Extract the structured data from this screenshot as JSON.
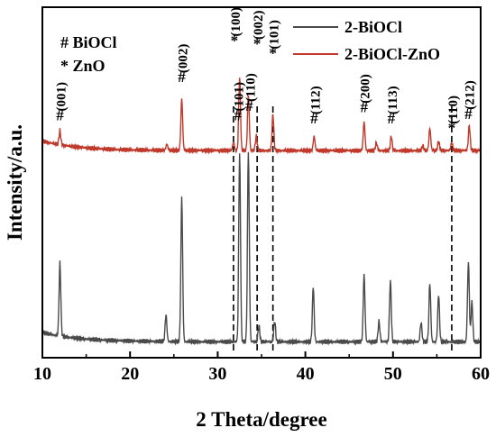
{
  "chart_data": {
    "type": "line",
    "title": "",
    "xlabel": "2 Theta/degree",
    "ylabel": "Intensity/a.u.",
    "xlim": [
      10,
      60
    ],
    "x_ticks": [
      10,
      20,
      30,
      40,
      50,
      60
    ],
    "y_ticks_shown": false,
    "grid": false,
    "legend_position": "top-right",
    "phase_key": [
      {
        "symbol": "#",
        "label": "BiOCl"
      },
      {
        "symbol": "*",
        "label": "ZnO"
      }
    ],
    "series": [
      {
        "name": "2-BiOCl",
        "color": "#4a4a4a",
        "baseline": 1.0,
        "peaks": [
          {
            "x": 12.0,
            "h": 4.6
          },
          {
            "x": 24.1,
            "h": 1.7
          },
          {
            "x": 25.9,
            "h": 9.2
          },
          {
            "x": 32.5,
            "h": 11.8
          },
          {
            "x": 33.5,
            "h": 12.0
          },
          {
            "x": 34.7,
            "h": 1.0
          },
          {
            "x": 36.5,
            "h": 1.3
          },
          {
            "x": 40.9,
            "h": 3.5
          },
          {
            "x": 46.7,
            "h": 4.2
          },
          {
            "x": 48.4,
            "h": 1.3
          },
          {
            "x": 49.7,
            "h": 3.8
          },
          {
            "x": 53.2,
            "h": 1.2
          },
          {
            "x": 54.2,
            "h": 3.7
          },
          {
            "x": 55.2,
            "h": 3.0
          },
          {
            "x": 58.6,
            "h": 5.0
          },
          {
            "x": 59.0,
            "h": 2.5
          }
        ]
      },
      {
        "name": "2-BiOCl-ZnO",
        "color": "#c0392b",
        "baseline": 13.0,
        "peaks": [
          {
            "x": 12.0,
            "h": 0.9
          },
          {
            "x": 24.2,
            "h": 0.4
          },
          {
            "x": 25.9,
            "h": 3.3
          },
          {
            "x": 31.8,
            "h": 0.5
          },
          {
            "x": 32.5,
            "h": 4.6
          },
          {
            "x": 33.5,
            "h": 3.5
          },
          {
            "x": 34.4,
            "h": 0.9
          },
          {
            "x": 36.3,
            "h": 2.3
          },
          {
            "x": 41.0,
            "h": 0.9
          },
          {
            "x": 46.7,
            "h": 1.8
          },
          {
            "x": 48.1,
            "h": 0.5
          },
          {
            "x": 49.8,
            "h": 0.9
          },
          {
            "x": 53.4,
            "h": 0.3
          },
          {
            "x": 54.2,
            "h": 1.4
          },
          {
            "x": 55.2,
            "h": 0.6
          },
          {
            "x": 56.7,
            "h": 0.5
          },
          {
            "x": 58.7,
            "h": 1.6
          }
        ]
      }
    ],
    "reference_lines": [
      31.8,
      34.5,
      36.3,
      56.7
    ],
    "annotations": [
      {
        "marker": "#",
        "x": 12.0,
        "y": 14.9,
        "label": "(001)"
      },
      {
        "marker": "#",
        "x": 25.9,
        "y": 17.3,
        "label": "(002)"
      },
      {
        "marker": "#",
        "x": 32.3,
        "y": 14.9,
        "label": "(101)"
      },
      {
        "marker": "*",
        "x": 31.9,
        "y": 19.6,
        "label": "(100)"
      },
      {
        "marker": "#",
        "x": 33.6,
        "y": 15.5,
        "label": "(110)"
      },
      {
        "marker": "*",
        "x": 34.5,
        "y": 19.4,
        "label": "(002)"
      },
      {
        "marker": "*",
        "x": 36.3,
        "y": 18.8,
        "label": "(101)"
      },
      {
        "marker": "#",
        "x": 41.0,
        "y": 14.7,
        "label": "(112)"
      },
      {
        "marker": "#",
        "x": 46.7,
        "y": 15.4,
        "label": "(200)"
      },
      {
        "marker": "#",
        "x": 49.8,
        "y": 14.7,
        "label": "(113)"
      },
      {
        "marker": "*",
        "x": 56.7,
        "y": 14.1,
        "label": "(110)"
      },
      {
        "marker": "#",
        "x": 58.6,
        "y": 15.0,
        "label": "(212)"
      }
    ]
  }
}
